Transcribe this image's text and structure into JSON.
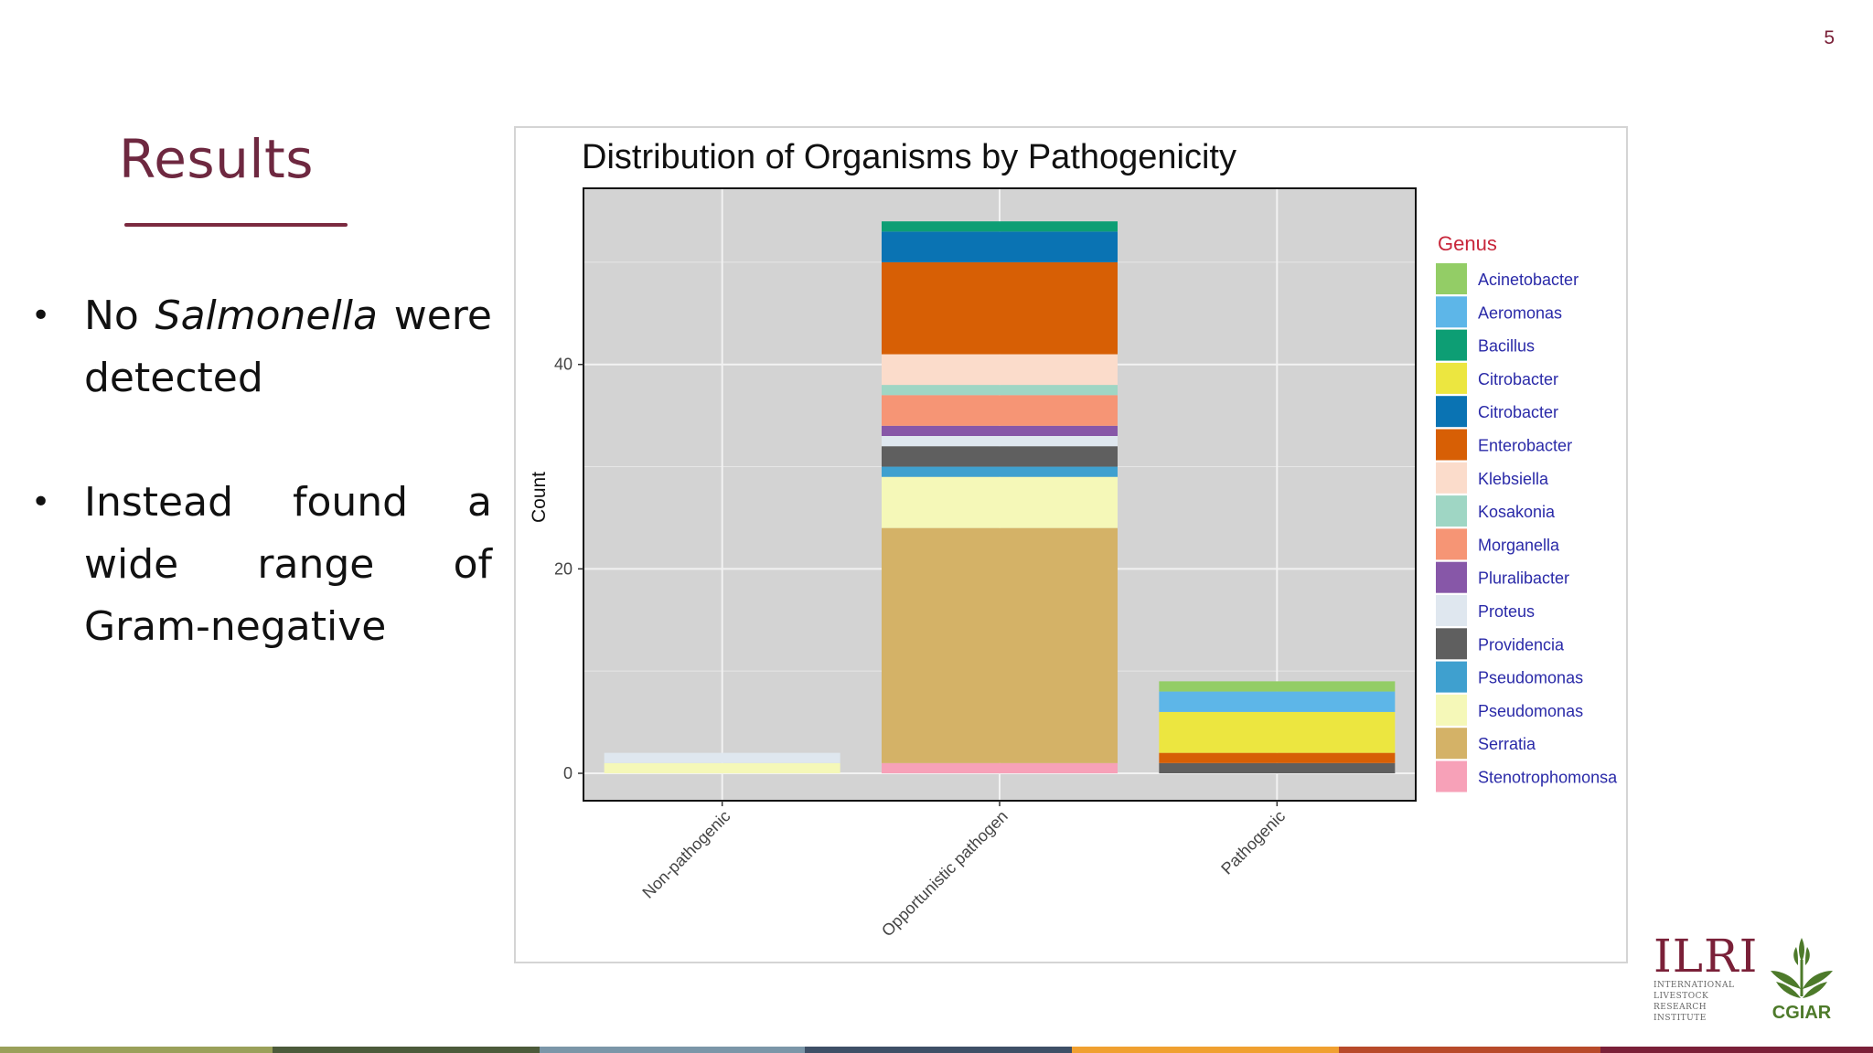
{
  "slide": {
    "page_number": "5",
    "title": "Results",
    "bullets": [
      {
        "before": "No ",
        "italic": "Salmonella",
        "after": " were detected"
      },
      {
        "before": "Instead found a wide range of Gram-negative",
        "italic": "",
        "after": ""
      }
    ]
  },
  "logos": {
    "ilri_big": "ILRI",
    "ilri_line1": "INTERNATIONAL",
    "ilri_line2": "LIVESTOCK RESEARCH",
    "ilri_line3": "INSTITUTE",
    "cgiar": "CGIAR"
  },
  "colors": {
    "title": "#6e2840",
    "plot_bg": "#d3d3d3",
    "legend_title": "#c8263a",
    "legend_label": "#2a2aa8",
    "bottom_bar": [
      "#9aa05a",
      "#4c5a3a",
      "#7b96a8",
      "#3e4f66",
      "#f0a030",
      "#b84a2a",
      "#7a2038"
    ]
  },
  "chart_data": {
    "type": "bar",
    "stacked": true,
    "title": "Distribution of Organisms by Pathogenicity",
    "xlabel": "",
    "ylabel": "Count",
    "ylim": [
      0,
      57
    ],
    "yticks": [
      0,
      20,
      40
    ],
    "grid": true,
    "legend_title": "Genus",
    "legend_position": "right",
    "categories": [
      "Non-pathogenic",
      "Opportunistic pathogen",
      "Pathogenic"
    ],
    "series": [
      {
        "name": "Stenotrophomonsa",
        "color": "#f7a1b8",
        "values": [
          0,
          1,
          0
        ]
      },
      {
        "name": "Serratia",
        "color": "#d4b267",
        "values": [
          0,
          23,
          0
        ]
      },
      {
        "name": "Pseudomonas",
        "color": "#f5f8b8",
        "values": [
          1,
          5,
          0
        ]
      },
      {
        "name": "Pseudomonas",
        "color": "#3fa0cf",
        "values": [
          0,
          1,
          0
        ]
      },
      {
        "name": "Providencia",
        "color": "#5f5f5f",
        "values": [
          0,
          2,
          1
        ]
      },
      {
        "name": "Proteus",
        "color": "#dfe7ef",
        "values": [
          1,
          1,
          0
        ]
      },
      {
        "name": "Pluralibacter",
        "color": "#8757a8",
        "values": [
          0,
          1,
          0
        ]
      },
      {
        "name": "Morganella",
        "color": "#f69575",
        "values": [
          0,
          3,
          0
        ]
      },
      {
        "name": "Kosakonia",
        "color": "#9fd6c4",
        "values": [
          0,
          1,
          0
        ]
      },
      {
        "name": "Klebsiella",
        "color": "#fbdccb",
        "values": [
          0,
          3,
          0
        ]
      },
      {
        "name": "Enterobacter",
        "color": "#d75f05",
        "values": [
          0,
          9,
          1
        ]
      },
      {
        "name": "Citrobacter",
        "color": "#0a73b3",
        "values": [
          0,
          3,
          0
        ]
      },
      {
        "name": "Citrobacter",
        "color": "#ece640",
        "values": [
          0,
          0,
          4
        ]
      },
      {
        "name": "Bacillus",
        "color": "#0d9e74",
        "values": [
          0,
          1,
          0
        ]
      },
      {
        "name": "Aeromonas",
        "color": "#5db6e8",
        "values": [
          0,
          0,
          2
        ]
      },
      {
        "name": "Acinetobacter",
        "color": "#93cd66",
        "values": [
          0,
          0,
          1
        ]
      }
    ],
    "legend_order": [
      "Acinetobacter",
      "Aeromonas",
      "Bacillus",
      "Citrobacter",
      "Citrobacter",
      "Enterobacter",
      "Klebsiella",
      "Kosakonia",
      "Morganella",
      "Pluralibacter",
      "Proteus",
      "Providencia",
      "Pseudomonas",
      "Pseudomonas",
      "Serratia",
      "Stenotrophomonsa"
    ],
    "legend_colors": [
      "#93cd66",
      "#5db6e8",
      "#0d9e74",
      "#ece640",
      "#0a73b3",
      "#d75f05",
      "#fbdccb",
      "#9fd6c4",
      "#f69575",
      "#8757a8",
      "#dfe7ef",
      "#5f5f5f",
      "#3fa0cf",
      "#f5f8b8",
      "#d4b267",
      "#f7a1b8"
    ]
  }
}
